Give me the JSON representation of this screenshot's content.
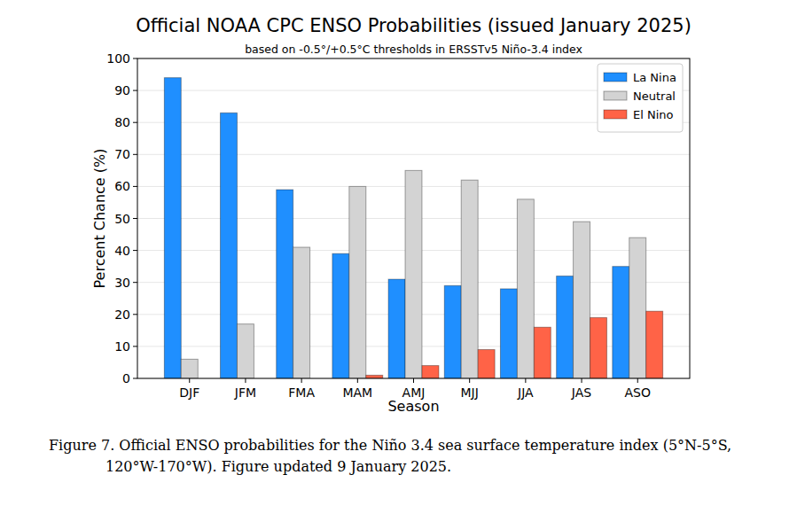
{
  "chart_data": {
    "type": "bar",
    "title": "Official NOAA CPC ENSO Probabilities (issued January 2025)",
    "subtitle": "based on -0.5°/+0.5°C thresholds in ERSSTv5 Niño-3.4 index",
    "x_label": "Season",
    "y_label": "Percent Chance (%)",
    "categories": [
      "DJF",
      "JFM",
      "FMA",
      "MAM",
      "AMJ",
      "MJJ",
      "JJA",
      "JAS",
      "ASO"
    ],
    "series": [
      {
        "name": "La Nina",
        "color": "#1f8fff",
        "values": [
          94,
          83,
          59,
          39,
          31,
          29,
          28,
          32,
          35
        ]
      },
      {
        "name": "Neutral",
        "color": "#d3d3d3",
        "values": [
          6,
          17,
          41,
          60,
          65,
          62,
          56,
          49,
          44
        ]
      },
      {
        "name": "El Nino",
        "color": "#ff6347",
        "values": [
          0,
          0,
          0,
          1,
          4,
          9,
          16,
          19,
          21
        ]
      }
    ],
    "ylim": [
      0,
      100
    ],
    "yticks": [
      0,
      10,
      20,
      30,
      40,
      50,
      60,
      70,
      80,
      90,
      100
    ],
    "grid": true,
    "legend": "upper right",
    "caption": [
      "Figure 7. Official ENSO probabilities for the Niño 3.4 sea surface temperature index (5°N-5°S,",
      "120°W-170°W). Figure updated 9 January 2025."
    ]
  }
}
